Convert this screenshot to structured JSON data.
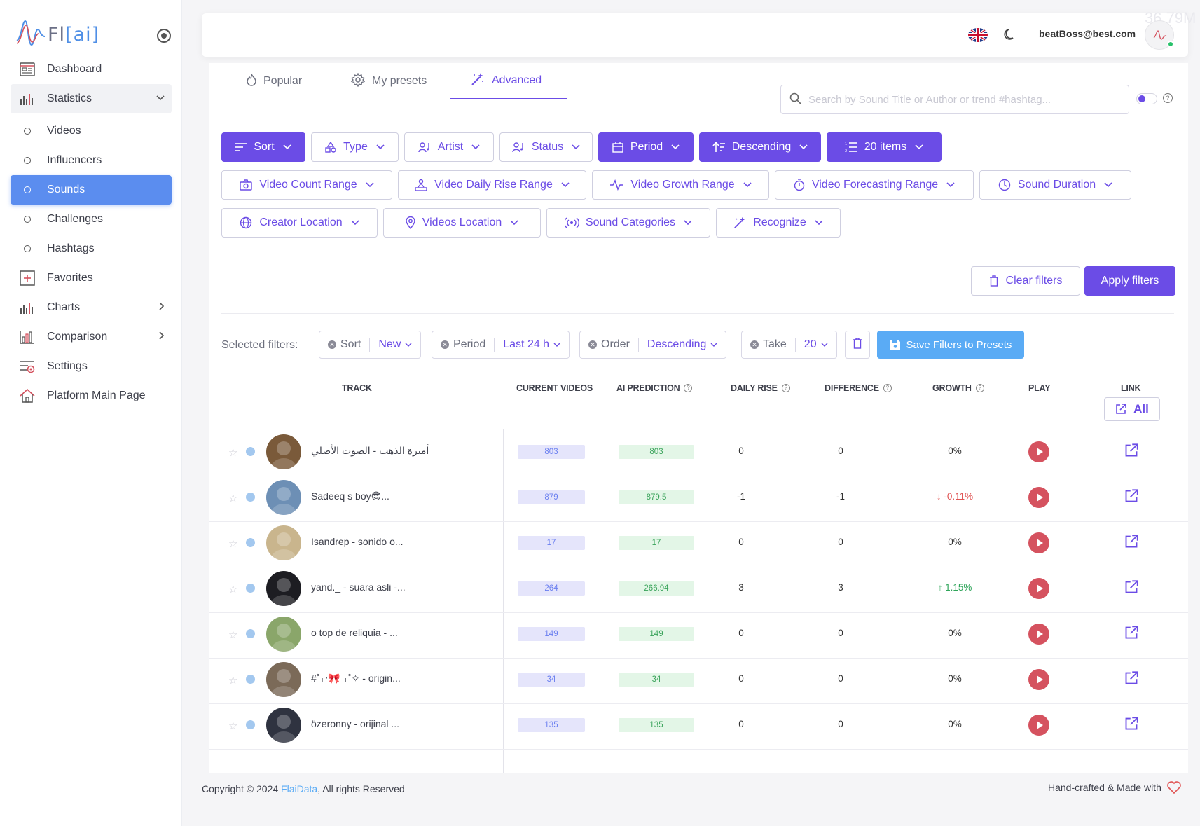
{
  "app": {
    "logo_text": "Fl",
    "logo_bracket": "[ai]"
  },
  "sidebar": {
    "items": [
      {
        "label": "Dashboard",
        "icon": "dashboard-icon"
      },
      {
        "label": "Statistics",
        "icon": "bar-chart-icon"
      },
      {
        "label": "Videos"
      },
      {
        "label": "Influencers"
      },
      {
        "label": "Sounds"
      },
      {
        "label": "Challenges"
      },
      {
        "label": "Hashtags"
      },
      {
        "label": "Favorites",
        "icon": "plus-square-icon"
      },
      {
        "label": "Charts",
        "icon": "bar-chart-icon"
      },
      {
        "label": "Comparison",
        "icon": "compare-chart-icon"
      },
      {
        "label": "Settings",
        "icon": "gear-icon"
      },
      {
        "label": "Platform Main Page",
        "icon": "home-icon"
      }
    ]
  },
  "header": {
    "ghost_value": "36.79M",
    "user_email": "beatBoss@best.com"
  },
  "tabs": [
    {
      "label": "Popular"
    },
    {
      "label": "My presets"
    },
    {
      "label": "Advanced"
    }
  ],
  "search": {
    "placeholder": "Search by Sound Title or Author or trend #hashtag..."
  },
  "filters": {
    "row1": [
      "Sort",
      "Type",
      "Artist",
      "Status",
      "Period",
      "Descending",
      "20 items"
    ],
    "row2": [
      "Video Count Range",
      "Video Daily Rise Range",
      "Video Growth Range",
      "Video Forecasting Range",
      "Sound Duration"
    ],
    "row3": [
      "Creator Location",
      "Videos Location",
      "Sound Categories",
      "Recognize"
    ],
    "clear_label": "Clear filters",
    "apply_label": "Apply filters"
  },
  "selected": {
    "label": "Selected filters:",
    "chips": [
      {
        "key": "Sort",
        "value": "New"
      },
      {
        "key": "Period",
        "value": "Last 24 h"
      },
      {
        "key": "Order",
        "value": "Descending"
      },
      {
        "key": "Take",
        "value": "20"
      }
    ],
    "save_label": "Save Filters to Presets"
  },
  "table": {
    "headers": {
      "track": "TRACK",
      "current": "CURRENT VIDEOS",
      "ai": "AI PREDICTION",
      "daily": "DAILY RISE",
      "diff": "DIFFERENCE",
      "growth": "GROWTH",
      "play": "PLAY",
      "link": "LINK"
    },
    "all_label": "All",
    "rows": [
      {
        "title": "أميرة الذهب - الصوت الأصلي",
        "current": "803",
        "ai": "803",
        "daily": "0",
        "diff": "0",
        "growth": "0%",
        "trend": "none",
        "avatar": "#7a5a3a"
      },
      {
        "title": "Sadeeq s boy😎...",
        "current": "879",
        "ai": "879.5",
        "daily": "-1",
        "diff": "-1",
        "growth": "-0.11%",
        "trend": "down",
        "avatar": "#6d8fb5"
      },
      {
        "title": "Isandrep - sonido o...",
        "current": "17",
        "ai": "17",
        "daily": "0",
        "diff": "0",
        "growth": "0%",
        "trend": "none",
        "avatar": "#c9b58d"
      },
      {
        "title": "yand._ - suara asli -...",
        "current": "264",
        "ai": "266.94",
        "daily": "3",
        "diff": "3",
        "growth": "1.15%",
        "trend": "up",
        "avatar": "#1d1d22"
      },
      {
        "title": "o top de reliquia - ...",
        "current": "149",
        "ai": "149",
        "daily": "0",
        "diff": "0",
        "growth": "0%",
        "trend": "none",
        "avatar": "#8aa66a"
      },
      {
        "title": "#˚₊‧🎀 ₊˚✧ - origin...",
        "current": "34",
        "ai": "34",
        "daily": "0",
        "diff": "0",
        "growth": "0%",
        "trend": "none",
        "avatar": "#7b6a58"
      },
      {
        "title": "özeronny - orijinal ...",
        "current": "135",
        "ai": "135",
        "daily": "0",
        "diff": "0",
        "growth": "0%",
        "trend": "none",
        "avatar": "#2f3340"
      }
    ]
  },
  "footer": {
    "copyright_prefix": "Copyright © 2024 ",
    "brand": "FlaiData",
    "copyright_suffix": ", All rights Reserved",
    "made_with": "Hand-crafted & Made with"
  },
  "colors": {
    "accent": "#6b4ce6",
    "active_nav": "#5b8def",
    "save": "#5aabf5",
    "play": "#d5525f"
  }
}
